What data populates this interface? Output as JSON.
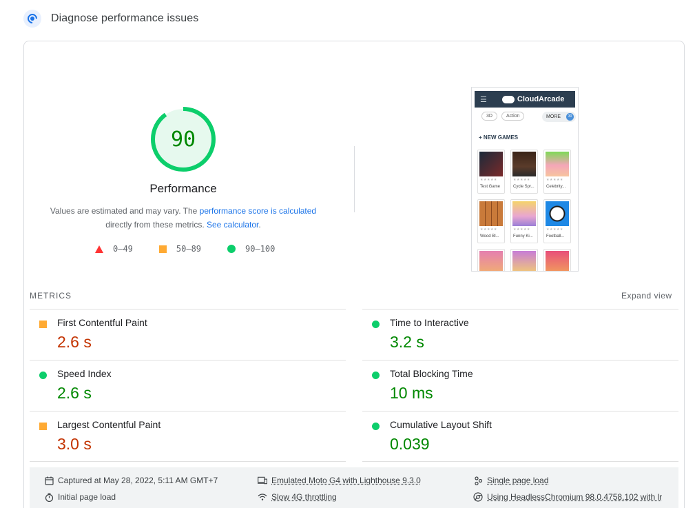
{
  "header": {
    "title": "Diagnose performance issues"
  },
  "score": {
    "value": "90",
    "label": "Performance",
    "fraction": 0.9,
    "desc_prefix": "Values are estimated and may vary. The ",
    "desc_link1": "performance score is calculated",
    "desc_middle": "directly from these metrics. ",
    "desc_link2": "See calculator",
    "desc_suffix": "."
  },
  "legend": [
    {
      "label": "0–49",
      "shape": "triangle",
      "color": "#ff3333"
    },
    {
      "label": "50–89",
      "shape": "square",
      "color": "#ffaa33"
    },
    {
      "label": "90–100",
      "shape": "circle",
      "color": "#0cce6b"
    }
  ],
  "thumbnail": {
    "brand": "CloudArcade",
    "chips": [
      "3D",
      "Action"
    ],
    "more": "MORE",
    "more_badge": "30",
    "section": "+ NEW GAMES",
    "stars": "★★★★★",
    "games": [
      "Test Game",
      "Cycle Spr...",
      "Celebrity...",
      "Wood Bl...",
      "Funny Ki...",
      "Football..."
    ]
  },
  "metrics": {
    "heading": "METRICS",
    "expand": "Expand view",
    "items": [
      {
        "label": "First Contentful Paint",
        "value": "2.6 s",
        "status": "average"
      },
      {
        "label": "Time to Interactive",
        "value": "3.2 s",
        "status": "pass"
      },
      {
        "label": "Speed Index",
        "value": "2.6 s",
        "status": "pass"
      },
      {
        "label": "Total Blocking Time",
        "value": "10 ms",
        "status": "pass"
      },
      {
        "label": "Largest Contentful Paint",
        "value": "3.0 s",
        "status": "average"
      },
      {
        "label": "Cumulative Layout Shift",
        "value": "0.039",
        "status": "pass"
      }
    ]
  },
  "footer": {
    "captured": "Captured at May 28, 2022, 5:11 AM GMT+7",
    "emulated": "Emulated Moto G4 with Lighthouse 9.3.0",
    "single": "Single page load",
    "initial": "Initial page load",
    "throttling": "Slow 4G throttling",
    "browser": "Using HeadlessChromium 98.0.4758.102 with lr"
  },
  "colors": {
    "pass": "#0cce6b",
    "average": "#ffaa33",
    "fail": "#ff3333",
    "link": "#1a73e8"
  }
}
